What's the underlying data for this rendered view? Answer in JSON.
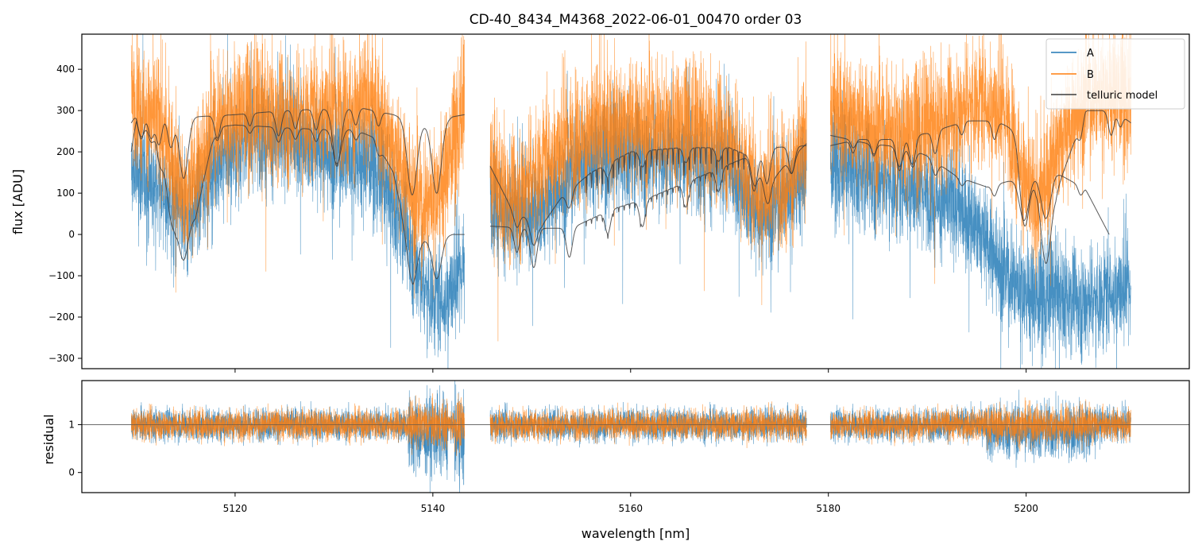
{
  "chart_data": [
    {
      "type": "line",
      "title": "CD-40_8434_M4368_2022-06-01_00470  order 03",
      "xlabel": "",
      "ylabel": "flux [ADU]",
      "xlim": [
        5104.5,
        5216.5
      ],
      "ylim": [
        -325,
        485
      ],
      "xticks": [
        5120,
        5140,
        5160,
        5180,
        5200
      ],
      "yticks": [
        -300,
        -200,
        -100,
        0,
        100,
        200,
        300,
        400
      ],
      "yticklabels": [
        "−300",
        "−200",
        "−100",
        "0",
        "100",
        "200",
        "300",
        "400"
      ],
      "legend_loc": "top-right",
      "segments": [
        [
          5109.5,
          5143.2
        ],
        [
          5145.8,
          5177.8
        ],
        [
          5180.2,
          5210.6
        ]
      ],
      "series": [
        {
          "name": "A",
          "color": "#1f77b4",
          "kind": "noisy-spectrum",
          "noise_amp": 80,
          "envelope": {
            "x": [
              5109.5,
              5112,
              5115,
              5118,
              5122,
              5126,
              5130,
              5134,
              5137,
              5139,
              5141,
              5143.2,
              5145.8,
              5148,
              5151,
              5155,
              5160,
              5165,
              5170,
              5173,
              5176,
              5177.8,
              5180.2,
              5184,
              5188,
              5192,
              5195,
              5198,
              5201,
              5203,
              5206,
              5209,
              5210.6
            ],
            "y": [
              150,
              120,
              20,
              170,
              240,
              230,
              190,
              170,
              30,
              -120,
              -170,
              -80,
              90,
              30,
              60,
              170,
              200,
              190,
              160,
              40,
              100,
              150,
              170,
              150,
              110,
              80,
              20,
              -100,
              -160,
              -140,
              -160,
              -140,
              -130
            ]
          }
        },
        {
          "name": "B",
          "color": "#ff7f0e",
          "kind": "noisy-spectrum",
          "noise_amp": 95,
          "envelope": {
            "x": [
              5109.5,
              5112,
              5115,
              5118,
              5122,
              5126,
              5130,
              5134,
              5137,
              5139,
              5141,
              5143.2,
              5145.8,
              5148,
              5151,
              5155,
              5160,
              5165,
              5170,
              5173,
              5176,
              5177.8,
              5180.2,
              5184,
              5188,
              5192,
              5195,
              5198,
              5201,
              5203,
              5206,
              5209,
              5210.6
            ],
            "y": [
              330,
              280,
              80,
              270,
              300,
              290,
              300,
              310,
              150,
              60,
              120,
              320,
              150,
              90,
              170,
              240,
              270,
              260,
              240,
              90,
              140,
              220,
              300,
              260,
              240,
              280,
              330,
              280,
              50,
              200,
              330,
              340,
              320
            ]
          }
        },
        {
          "name": "telluric model",
          "color": "#3c3c3c",
          "kind": "model",
          "continuum": [
            {
              "x": [
                5109.5,
                5110,
                5112,
                5114,
                5116,
                5118,
                5120,
                5124,
                5128,
                5132,
                5134,
                5136,
                5137,
                5138,
                5140,
                5142,
                5143.2
              ],
              "y": [
                200,
                280,
                250,
                20,
                40,
                260,
                265,
                260,
                255,
                255,
                235,
                150,
                40,
                -15,
                -10,
                0,
                0
              ]
            },
            {
              "x": [
                5109.5,
                5110,
                5112,
                5116,
                5120,
                5125,
                5130,
                5133,
                5134,
                5136,
                5138,
                5140,
                5142,
                5143.2
              ],
              "y": [
                270,
                292,
                288,
                285,
                290,
                300,
                305,
                305,
                300,
                290,
                275,
                260,
                285,
                290
              ]
            },
            {
              "x": [
                5145.8,
                5148,
                5151,
                5153,
                5156,
                5160,
                5165,
                5170,
                5172,
                5174,
                5176,
                5177.8
              ],
              "y": [
                165,
                60,
                20,
                90,
                150,
                200,
                210,
                210,
                190,
                120,
                180,
                220
              ]
            },
            {
              "x": [
                5145.8,
                5150,
                5154,
                5158,
                5162,
                5166,
                5170,
                5174,
                5177.8
              ],
              "y": [
                20,
                15,
                15,
                60,
                90,
                130,
                170,
                210,
                215
              ]
            },
            {
              "x": [
                5180.2,
                5184,
                5188,
                5190,
                5193,
                5196,
                5200,
                5203,
                5206,
                5208.4
              ],
              "y": [
                240,
                220,
                210,
                190,
                140,
                115,
                140,
                150,
                110,
                0
              ]
            },
            {
              "x": [
                5180.2,
                5183,
                5186,
                5190,
                5194,
                5197,
                5199,
                5201,
                5203,
                5206,
                5209,
                5210.6
              ],
              "y": [
                215,
                230,
                230,
                245,
                275,
                275,
                250,
                120,
                100,
                300,
                300,
                270
              ]
            }
          ],
          "lines": [
            {
              "x": 5110.5,
              "d": 120
            },
            {
              "x": 5111.5,
              "d": 110
            },
            {
              "x": 5112.3,
              "d": 140
            },
            {
              "x": 5113.5,
              "d": 150
            },
            {
              "x": 5114.8,
              "d": 300
            },
            {
              "x": 5118.2,
              "d": 110
            },
            {
              "x": 5121.5,
              "d": 60
            },
            {
              "x": 5124.4,
              "d": 120
            },
            {
              "x": 5126.1,
              "d": 90
            },
            {
              "x": 5128.2,
              "d": 100
            },
            {
              "x": 5130.3,
              "d": 280
            },
            {
              "x": 5132.2,
              "d": 80
            },
            {
              "x": 5134.5,
              "d": 70
            },
            {
              "x": 5137.9,
              "d": 360
            },
            {
              "x": 5140.4,
              "d": 330
            },
            {
              "x": 5148.5,
              "d": 120
            },
            {
              "x": 5150.2,
              "d": 190
            },
            {
              "x": 5153.8,
              "d": 140
            },
            {
              "x": 5157.7,
              "d": 110
            },
            {
              "x": 5161.2,
              "d": 130
            },
            {
              "x": 5165.6,
              "d": 120
            },
            {
              "x": 5168.9,
              "d": 110
            },
            {
              "x": 5172.5,
              "d": 180
            },
            {
              "x": 5173.8,
              "d": 170
            },
            {
              "x": 5176.3,
              "d": 130
            },
            {
              "x": 5182.5,
              "d": 60
            },
            {
              "x": 5184.6,
              "d": 80
            },
            {
              "x": 5187.2,
              "d": 160
            },
            {
              "x": 5188.5,
              "d": 140
            },
            {
              "x": 5190.8,
              "d": 110
            },
            {
              "x": 5193.5,
              "d": 60
            },
            {
              "x": 5196.8,
              "d": 90
            },
            {
              "x": 5199.8,
              "d": 350
            },
            {
              "x": 5202.0,
              "d": 360
            },
            {
              "x": 5205.5,
              "d": 70
            },
            {
              "x": 5208.6,
              "d": 120
            },
            {
              "x": 5209.5,
              "d": 60
            }
          ],
          "forest": {
            "x0": 5155.5,
            "x1": 5171.5,
            "step": 0.55,
            "d": 40
          }
        }
      ]
    },
    {
      "type": "line",
      "title": "",
      "xlabel": "wavelength [nm]",
      "ylabel": "residual",
      "xlim": [
        5104.5,
        5216.5
      ],
      "ylim": [
        -0.42,
        1.92
      ],
      "xticks": [
        5120,
        5140,
        5160,
        5180,
        5200
      ],
      "xticklabels": [
        "5120",
        "5140",
        "5160",
        "5180",
        "5200"
      ],
      "yticks": [
        0,
        1
      ],
      "yticklabels": [
        "0",
        "1"
      ],
      "reference_line": 1,
      "series": [
        {
          "name": "A",
          "color": "#1f77b4",
          "kind": "noisy-residual",
          "center": 1,
          "noise_amp": 0.32
        },
        {
          "name": "B",
          "color": "#ff7f0e",
          "kind": "noisy-residual",
          "center": 1,
          "noise_amp": 0.3
        }
      ],
      "hotspots": [
        {
          "x0": 5137.5,
          "x1": 5141.5,
          "amp": 1.4
        },
        {
          "x0": 5142.2,
          "x1": 5143.2,
          "amp": 2.0
        },
        {
          "x0": 5196,
          "x1": 5207,
          "amp": 0.8
        }
      ]
    }
  ],
  "legend": {
    "entries": [
      {
        "label": "A",
        "color": "#1f77b4"
      },
      {
        "label": "B",
        "color": "#ff7f0e"
      },
      {
        "label": "telluric model",
        "color": "#3c3c3c"
      }
    ]
  }
}
